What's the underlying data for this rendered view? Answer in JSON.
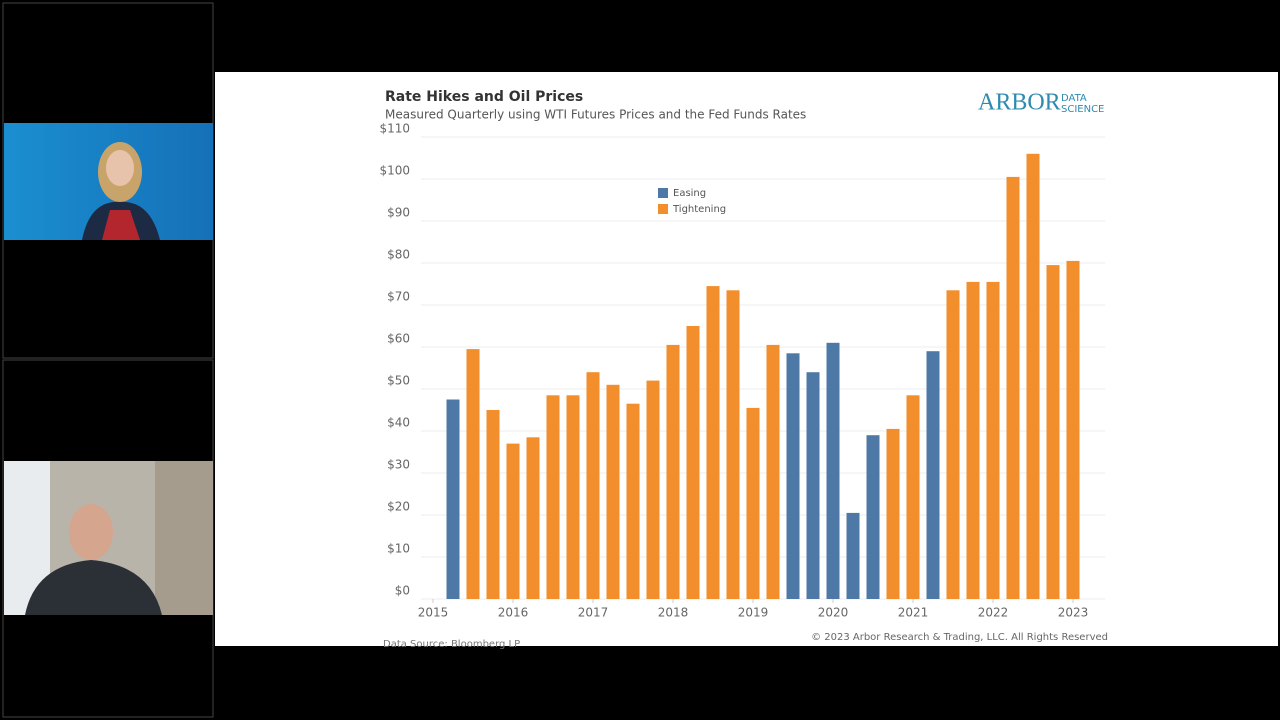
{
  "chart_data": {
    "type": "bar",
    "title": "Rate Hikes and Oil Prices",
    "subtitle": "Measured Quarterly using WTI Futures Prices and the Fed Funds Rates",
    "x": [
      2015.25,
      2015.5,
      2015.75,
      2016,
      2016.25,
      2016.5,
      2016.75,
      2017,
      2017.25,
      2017.5,
      2017.75,
      2018,
      2018.25,
      2018.5,
      2018.75,
      2019,
      2019.25,
      2019.5,
      2019.75,
      2020,
      2020.25,
      2020.5,
      2020.75,
      2021,
      2021.25,
      2021.5,
      2021.75,
      2022,
      2022.25,
      2022.5,
      2022.75,
      2023
    ],
    "series": [
      {
        "name": "Easing",
        "color": "#4e79a7",
        "values": [
          47.5,
          null,
          null,
          null,
          null,
          null,
          null,
          null,
          null,
          null,
          null,
          null,
          null,
          null,
          null,
          null,
          null,
          58.5,
          54,
          61,
          20.5,
          39,
          null,
          null,
          59,
          null,
          null,
          null,
          null,
          null,
          null,
          null
        ]
      },
      {
        "name": "Tightening",
        "color": "#f28e2b",
        "values": [
          null,
          59.5,
          45,
          37,
          38.5,
          48.5,
          48.5,
          54,
          51,
          46.5,
          52,
          60.5,
          65,
          74.5,
          73.5,
          45.5,
          60.5,
          null,
          null,
          null,
          null,
          null,
          40.5,
          48.5,
          null,
          73.5,
          75.5,
          75.5,
          100.5,
          106,
          79.5,
          80.5
        ]
      }
    ],
    "xlim": [
      2014.85,
      2023.4
    ],
    "xticks": [
      2015,
      2016,
      2017,
      2018,
      2019,
      2020,
      2021,
      2022,
      2023
    ],
    "ylim": [
      0,
      110
    ],
    "yticks": [
      {
        "value": 0,
        "label": "$0"
      },
      {
        "value": 10,
        "label": "$10"
      },
      {
        "value": 20,
        "label": "$20"
      },
      {
        "value": 30,
        "label": "$30"
      },
      {
        "value": 40,
        "label": "$40"
      },
      {
        "value": 50,
        "label": "$50"
      },
      {
        "value": 60,
        "label": "$60"
      },
      {
        "value": 70,
        "label": "$70"
      },
      {
        "value": 80,
        "label": "$80"
      },
      {
        "value": 90,
        "label": "$90"
      },
      {
        "value": 100,
        "label": "$100"
      },
      {
        "value": 110,
        "label": "$110"
      }
    ],
    "grid": true,
    "legend": "top"
  },
  "logo": {
    "main": "ARBOR",
    "sub1": "DATA",
    "sub2": "SCIENCE"
  },
  "source": "Data Source: Bloomberg LP",
  "copyright": "© 2023 Arbor Research & Trading, LLC. All Rights Reserved"
}
